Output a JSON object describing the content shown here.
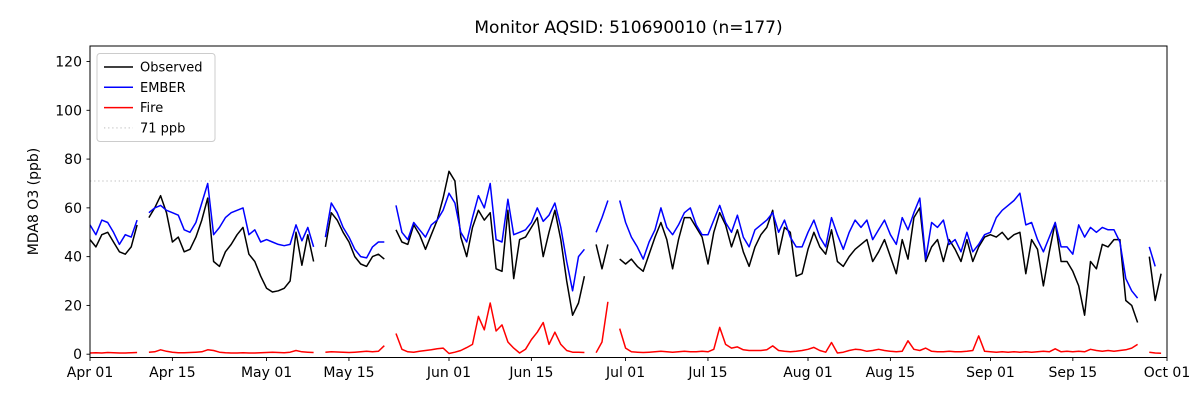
{
  "figure": {
    "title": "Monitor AQSID: 510690010 (n=177)",
    "ylabel": "MDA8 O3 (ppb)",
    "background_color": "#ffffff",
    "spine_color": "#000000"
  },
  "legend": {
    "position": "upper left",
    "items": [
      {
        "label": "Observed",
        "color": "#000000",
        "style": "solid"
      },
      {
        "label": "EMBER",
        "color": "#0000ff",
        "style": "solid"
      },
      {
        "label": "Fire",
        "color": "#ff0000",
        "style": "solid"
      },
      {
        "label": "71 ppb",
        "color": "#d3d3d3",
        "style": "dotted"
      }
    ]
  },
  "chart_data": {
    "type": "line",
    "title": "Monitor AQSID: 510690010 (n=177)",
    "xlabel": "",
    "ylabel": "MDA8 O3 (ppb)",
    "x_frequency": "daily",
    "x_start": "Apr 01",
    "x_end": "Sep 30",
    "n_valid_days": 177,
    "missing_dates": [
      "Apr 10",
      "May 10",
      "May 22",
      "Jun 25",
      "Jun 29",
      "Sep 27"
    ],
    "threshold": {
      "label": "71 ppb",
      "value": 71,
      "color": "#d3d3d3",
      "style": "dotted"
    },
    "grid": false,
    "ylim": [
      -1.5,
      126.5
    ],
    "yticks": [
      0,
      20,
      40,
      60,
      80,
      100,
      120
    ],
    "xticks": [
      {
        "label": "Apr 01",
        "day": 0
      },
      {
        "label": "Apr 15",
        "day": 14
      },
      {
        "label": "May 01",
        "day": 30
      },
      {
        "label": "May 15",
        "day": 44
      },
      {
        "label": "Jun 01",
        "day": 61
      },
      {
        "label": "Jun 15",
        "day": 75
      },
      {
        "label": "Jul 01",
        "day": 91
      },
      {
        "label": "Jul 15",
        "day": 105
      },
      {
        "label": "Aug 01",
        "day": 122
      },
      {
        "label": "Aug 15",
        "day": 136
      },
      {
        "label": "Sep 01",
        "day": 153
      },
      {
        "label": "Sep 15",
        "day": 167
      },
      {
        "label": "Oct 01",
        "day": 183
      }
    ],
    "series": [
      {
        "name": "Observed",
        "color": "#000000",
        "values": [
          47,
          44,
          49,
          50,
          46,
          42,
          41,
          44,
          53,
          null,
          56,
          60,
          65,
          58,
          46,
          48,
          42,
          43,
          48,
          55,
          64,
          38,
          36,
          42,
          45,
          49,
          52,
          41,
          38,
          32,
          27,
          25.5,
          26,
          27,
          30,
          50,
          36.5,
          49,
          38,
          null,
          44,
          58,
          55,
          50,
          46,
          40,
          37,
          36,
          40,
          41,
          39,
          null,
          51,
          46,
          45,
          53,
          49,
          43,
          49,
          55,
          64,
          75,
          71,
          48,
          40,
          52,
          59,
          55,
          58,
          35,
          34,
          59,
          31,
          47,
          48,
          52,
          56,
          40,
          50,
          59,
          47,
          30,
          16,
          21,
          32,
          null,
          45,
          35,
          45,
          null,
          39,
          37,
          39,
          36,
          34,
          41,
          48,
          54,
          47,
          35,
          47,
          56,
          56,
          52,
          48,
          37,
          50,
          58,
          53,
          44,
          51,
          42,
          36,
          44,
          49,
          52,
          59,
          41,
          52,
          50,
          32,
          33,
          43,
          50,
          44,
          41,
          51,
          38,
          36,
          40,
          43,
          45,
          47,
          38,
          42,
          47,
          40,
          33,
          47,
          39,
          56,
          60,
          38,
          44,
          47,
          38,
          47,
          43,
          38,
          47,
          38,
          44,
          48,
          49,
          48,
          50,
          47,
          49,
          50,
          33,
          47,
          43,
          28,
          42,
          54,
          38,
          38,
          34,
          28,
          16,
          38,
          35,
          45,
          44,
          47,
          47,
          22,
          20,
          13,
          null,
          40,
          22,
          33
        ]
      },
      {
        "name": "EMBER",
        "color": "#0000ff",
        "values": [
          53,
          49,
          55,
          54,
          50,
          45,
          49,
          48,
          55,
          null,
          58,
          60,
          61,
          59,
          58,
          57,
          51,
          50,
          54,
          62,
          70,
          49,
          52,
          56,
          58,
          59,
          60,
          49,
          51,
          46,
          47,
          46,
          45,
          44.5,
          45,
          53,
          46.5,
          52,
          44,
          null,
          48,
          62,
          58,
          52,
          48,
          43,
          40,
          39.5,
          44,
          46,
          46,
          null,
          61,
          50,
          47,
          54,
          51,
          48,
          53,
          55,
          59,
          66,
          62,
          50,
          46,
          56,
          65,
          60,
          70,
          47,
          46,
          63.5,
          49,
          50,
          51,
          54,
          60,
          54.5,
          57,
          62,
          52,
          38,
          26,
          40,
          43,
          null,
          50,
          56,
          63,
          null,
          63,
          54,
          48,
          44,
          39,
          46,
          51,
          60,
          52,
          49,
          53,
          58,
          60,
          53,
          49,
          49,
          55,
          61,
          54,
          50,
          57,
          48,
          44,
          51,
          53,
          55,
          58,
          50,
          55,
          48,
          44,
          44,
          50,
          55,
          48,
          44,
          56,
          49,
          43,
          50,
          55,
          52,
          55,
          47,
          51,
          55,
          49,
          45,
          56,
          51,
          58,
          64,
          39,
          54,
          52,
          55,
          45,
          47,
          42,
          50,
          42,
          45,
          49,
          50,
          56,
          59,
          61,
          63,
          66,
          53,
          54,
          47,
          42,
          48,
          54,
          44,
          44,
          41,
          53,
          48,
          52,
          50,
          52,
          51,
          51,
          46,
          31,
          26,
          23,
          null,
          44,
          36,
          null
        ]
      },
      {
        "name": "Fire",
        "color": "#ff0000",
        "values": [
          0.5,
          0.6,
          0.5,
          0.7,
          0.6,
          0.5,
          0.5,
          0.6,
          0.7,
          null,
          0.8,
          1,
          1.8,
          1.2,
          0.8,
          0.6,
          0.6,
          0.7,
          0.8,
          1,
          1.8,
          1.5,
          0.8,
          0.6,
          0.5,
          0.5,
          0.6,
          0.5,
          0.5,
          0.6,
          0.7,
          0.8,
          0.7,
          0.6,
          0.8,
          1.5,
          1,
          0.8,
          0.7,
          null,
          0.8,
          1,
          0.9,
          0.8,
          0.7,
          0.8,
          1,
          1.2,
          1,
          1.2,
          3.5,
          null,
          8.5,
          2,
          1,
          0.8,
          1.2,
          1.5,
          1.8,
          2.2,
          2.5,
          0.3,
          0.8,
          1.5,
          2.7,
          4,
          15.5,
          10,
          21,
          9.5,
          12,
          5,
          2.5,
          0.5,
          2,
          6,
          9,
          13,
          4,
          9,
          4,
          1.5,
          0.8,
          0.8,
          0.7,
          null,
          0.6,
          5,
          21.5,
          null,
          10.5,
          2.5,
          1,
          0.8,
          0.7,
          0.8,
          1,
          1.2,
          1,
          0.8,
          1,
          1.2,
          1,
          1,
          1.2,
          1,
          2,
          11,
          4,
          2.5,
          3,
          1.8,
          1.5,
          1.5,
          1.5,
          1.8,
          3.4,
          1.5,
          1.2,
          1,
          1.2,
          1.5,
          2,
          2.8,
          1.5,
          0.8,
          4.8,
          0.5,
          0.8,
          1.5,
          2,
          1.8,
          1.2,
          1.5,
          2,
          1.5,
          1.2,
          1,
          1.2,
          5.5,
          2,
          1.5,
          2.5,
          1.2,
          1,
          1,
          1.2,
          1,
          1,
          1.2,
          1.5,
          7.5,
          1.2,
          1,
          0.8,
          1,
          0.8,
          1,
          0.8,
          1,
          0.8,
          1,
          1.2,
          1,
          2.2,
          1,
          1.2,
          1,
          1.2,
          1,
          2,
          1.5,
          1.2,
          1.5,
          1.2,
          1.5,
          1.8,
          2.5,
          4,
          null,
          0.8,
          0.5,
          0.4
        ]
      }
    ]
  }
}
